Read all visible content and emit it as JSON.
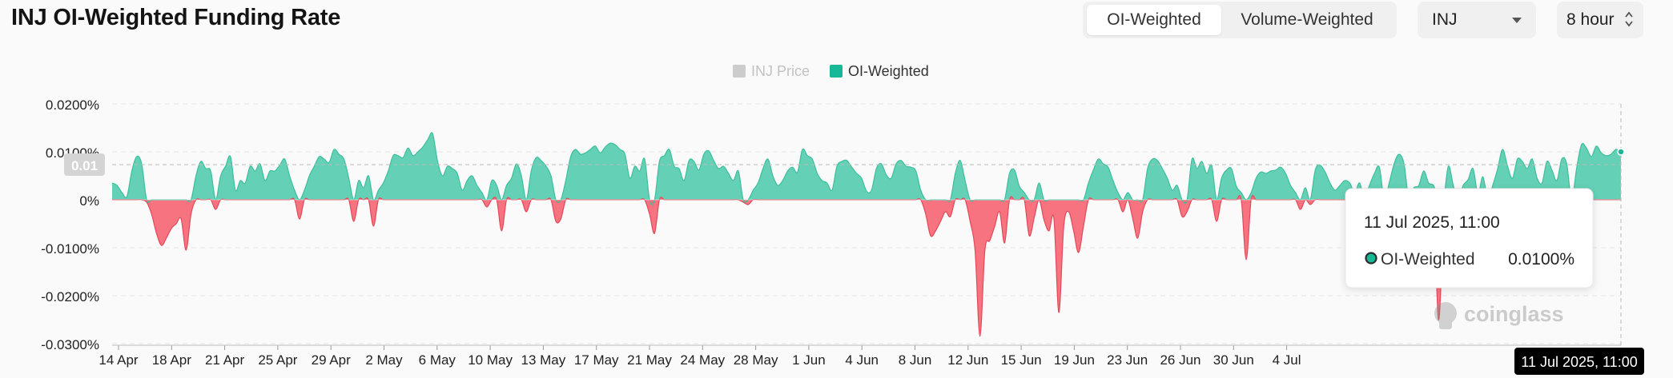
{
  "header": {
    "title": "INJ OI-Weighted Funding Rate",
    "tabs": [
      {
        "label": "OI-Weighted",
        "active": true
      },
      {
        "label": "Volume-Weighted",
        "active": false
      }
    ],
    "symbol_select": {
      "value": "INJ"
    },
    "interval_select": {
      "value": "8 hour"
    }
  },
  "chart_data": {
    "type": "area",
    "legend": [
      {
        "name": "INJ Price",
        "color": "#cccccc",
        "enabled": false
      },
      {
        "name": "OI-Weighted",
        "color": "#17b897",
        "enabled": true
      }
    ],
    "legend_position": "top-center",
    "y_ticks": [
      "0.0200%",
      "0.0100%",
      "0%",
      "-0.0100%",
      "-0.0200%",
      "-0.0300%"
    ],
    "ylim": [
      -0.03,
      0.02
    ],
    "x_ticks": [
      "14 Apr",
      "18 Apr",
      "21 Apr",
      "25 Apr",
      "29 Apr",
      "2 May",
      "6 May",
      "10 May",
      "13 May",
      "17 May",
      "21 May",
      "24 May",
      "28 May",
      "1 Jun",
      "4 Jun",
      "8 Jun",
      "12 Jun",
      "15 Jun",
      "19 Jun",
      "23 Jun",
      "26 Jun",
      "30 Jun",
      "4 Jul"
    ],
    "x_start": "12 Apr 2025, 03:00",
    "x_end": "11 Jul 2025, 11:00",
    "positive_color": "#5ccfb2",
    "negative_color": "#f56b78",
    "grid": true,
    "crosshair_y_label": "0.01",
    "crosshair_x_label": "11 Jul 2025, 11:00",
    "tooltip": {
      "time": "11 Jul 2025, 11:00",
      "series": "OI-Weighted",
      "value": "0.0100%"
    },
    "watermark": "coinglass",
    "series": [
      {
        "name": "OI-Weighted",
        "values": [
          0.0035,
          0.003,
          0.0015,
          0.0007,
          0.006,
          0.009,
          0.0075,
          -0.0005,
          -0.003,
          -0.007,
          -0.0095,
          -0.008,
          -0.006,
          -0.005,
          -0.004,
          -0.0105,
          -0.003,
          0.005,
          0.008,
          0.0065,
          0.006,
          -0.002,
          0.005,
          0.007,
          0.009,
          0.002,
          0.004,
          0.0035,
          0.007,
          0.006,
          0.0075,
          0.004,
          0.006,
          0.006,
          0.0072,
          0.0085,
          0.005,
          0.002,
          -0.004,
          0.002,
          0.005,
          0.007,
          0.009,
          0.0085,
          0.0078,
          0.0105,
          0.0095,
          0.0085,
          0.0045,
          -0.0045,
          0.004,
          0.0025,
          0.005,
          -0.0055,
          0.002,
          0.0035,
          0.006,
          0.0092,
          0.0092,
          0.0088,
          0.0108,
          0.0092,
          0.01,
          0.011,
          0.0125,
          0.0138,
          0.008,
          0.005,
          0.007,
          0.0065,
          0.0055,
          0.002,
          0.004,
          0.005,
          0.003,
          0.0015,
          -0.0015,
          0.004,
          0.003,
          -0.0065,
          0.003,
          0.0045,
          0.0075,
          0.005,
          -0.0025,
          0.006,
          0.0088,
          0.0082,
          0.007,
          0.005,
          -0.0045,
          -0.004,
          0.004,
          0.009,
          0.0105,
          0.0095,
          0.0098,
          0.0105,
          0.0112,
          0.0098,
          0.011,
          0.0118,
          0.0115,
          0.0105,
          0.0095,
          0.0045,
          0.007,
          0.006,
          0.0085,
          -0.003,
          -0.007,
          0.008,
          0.0092,
          0.0105,
          0.007,
          0.0065,
          0.004,
          0.0082,
          0.008,
          0.0062,
          0.0095,
          0.0102,
          0.0082,
          0.0065,
          0.007,
          0.0055,
          0.004,
          0.006,
          -0.0005,
          -0.001,
          0.002,
          0.0035,
          0.0065,
          0.0085,
          0.005,
          0.003,
          0.004,
          0.006,
          0.0068,
          0.0058,
          0.0105,
          0.0092,
          0.0085,
          0.0055,
          0.004,
          0.0035,
          0.002,
          0.007,
          0.008,
          0.0082,
          0.0068,
          0.0055,
          0.0045,
          0.0018,
          0.002,
          0.0065,
          0.0075,
          0.0052,
          0.0045,
          0.0075,
          0.0082,
          0.007,
          0.0068,
          0.006,
          0.002,
          -0.003,
          -0.0075,
          -0.0065,
          -0.0045,
          -0.0025,
          -0.0035,
          0.0055,
          0.0082,
          0.004,
          -0.0045,
          -0.0105,
          -0.0285,
          -0.0105,
          -0.0085,
          -0.0055,
          -0.0025,
          -0.009,
          0.0055,
          0.0062,
          0.0028,
          0.0015,
          -0.0075,
          -0.0038,
          0.0035,
          -0.0042,
          -0.0065,
          -0.004,
          -0.0235,
          -0.0055,
          -0.0025,
          -0.0065,
          -0.011,
          -0.0055,
          0.0035,
          0.0062,
          0.0085,
          0.0075,
          0.0068,
          0.004,
          0.0015,
          -0.0025,
          0.0015,
          -0.004,
          -0.008,
          -0.0025,
          0.0065,
          0.0085,
          0.0082,
          0.0065,
          0.0045,
          0.002,
          0.003,
          -0.0035,
          -0.0025,
          0.0085,
          0.0065,
          0.008,
          0.0055,
          0.0072,
          -0.0045,
          0.0045,
          0.0062,
          0.0065,
          0.0028,
          0.0015,
          -0.0125,
          0.0015,
          0.0045,
          0.0058,
          0.0055,
          0.006,
          0.0062,
          0.0068,
          0.0055,
          0.003,
          0.0015,
          -0.002,
          0.0025,
          -0.001,
          0.0062,
          0.0072,
          0.0058,
          0.0035,
          0.002,
          0.003,
          0.004,
          0.0035,
          0.0015,
          0.0035,
          -0.0025,
          0.003,
          0.0055,
          0.0068,
          -0.0155,
          0.0035,
          0.0075,
          0.0095,
          0.0075,
          -0.002,
          0.0025,
          0.003,
          0.006,
          0.0035,
          0.003,
          -0.025,
          -0.006,
          0.007,
          0.003,
          -0.002,
          0.003,
          0.0042,
          0.0065,
          0.0012,
          0.0048,
          -0.0095,
          0.003,
          0.0065,
          0.0105,
          0.007,
          0.0045,
          0.0085,
          0.008,
          0.0065,
          0.0085,
          0.0045,
          0.0035,
          0.008,
          0.0062,
          0.004,
          0.0085,
          0.0075,
          -0.002,
          0.0065,
          0.0115,
          0.0108,
          0.009,
          0.0112,
          0.0098,
          0.0092,
          0.0095,
          0.0105,
          0.01
        ]
      }
    ]
  }
}
